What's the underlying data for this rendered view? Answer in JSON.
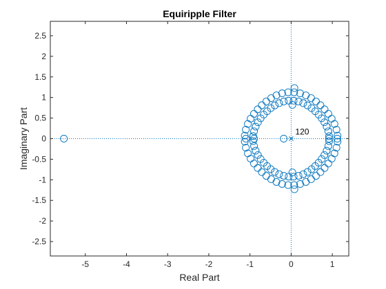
{
  "chart_data": {
    "type": "scatter",
    "title": "Equiripple Filter",
    "xlabel": "Real Part",
    "ylabel": "Imaginary Part",
    "xlim": [
      -5.85,
      1.4
    ],
    "ylim": [
      -2.85,
      2.85
    ],
    "xticks": [
      -5,
      -4,
      -3,
      -2,
      -1,
      0,
      1
    ],
    "yticks": [
      -2.5,
      -2,
      -1.5,
      -1,
      -0.5,
      0,
      0.5,
      1,
      1.5,
      2,
      2.5
    ],
    "xtick_labels": [
      "-5",
      "-4",
      "-3",
      "-2",
      "-1",
      "0",
      "1"
    ],
    "ytick_labels": [
      "-2.5",
      "-2",
      "-1.5",
      "-1",
      "-0.5",
      "0",
      "0.5",
      "1",
      "1.5",
      "2",
      "2.5"
    ],
    "grid": false,
    "reference_lines": "dotted unit circle and dotted axes through origin",
    "annotation": {
      "text": "120",
      "x": 0.1,
      "y": 0.1
    },
    "pole": {
      "x": 0,
      "y": 0,
      "order": 120,
      "marker": "x"
    },
    "zeros_summary": {
      "outer_ring_count": 48,
      "inner_ring_count": 48,
      "outer_ring_radius": "approx 1.08-1.13",
      "inner_ring_radius": "approx 0.89-0.93",
      "isolated_zeros": [
        {
          "x": -5.52,
          "y": 0
        },
        {
          "x": -0.18,
          "y": 0
        },
        {
          "x": 1.12,
          "y": 0
        },
        {
          "x": 0.92,
          "y": 0
        },
        {
          "x": -1.1,
          "y": 0
        },
        {
          "x": -0.9,
          "y": 0
        },
        {
          "x": 0.08,
          "y": 1.23
        },
        {
          "x": 0.08,
          "y": -1.23
        },
        {
          "x": 0.03,
          "y": 0.82
        },
        {
          "x": 0.03,
          "y": -0.82
        }
      ]
    },
    "colors": {
      "marker": "#0072BD",
      "axes": "#262626",
      "annotation": "#000000"
    }
  }
}
